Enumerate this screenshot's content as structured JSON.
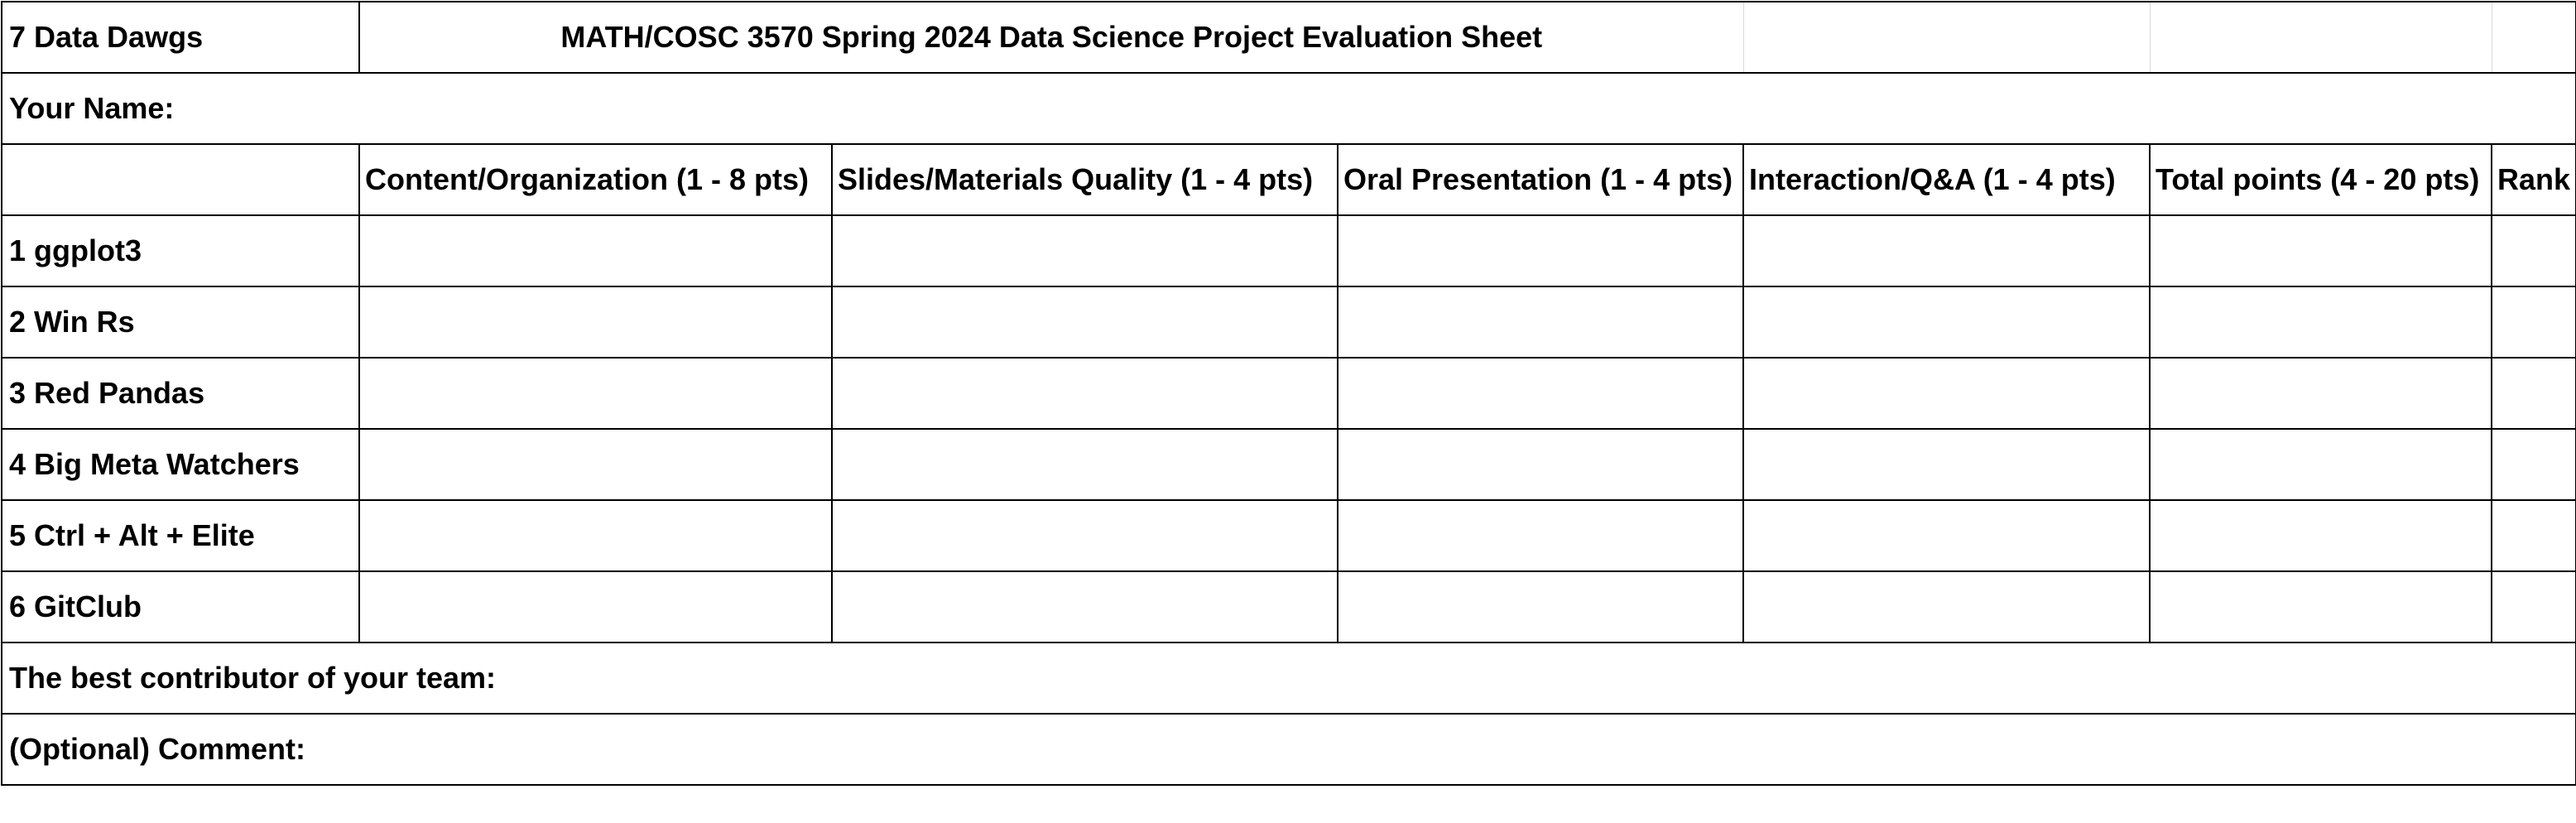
{
  "sheet": {
    "group_label": "7 Data Dawgs",
    "title": "MATH/COSC 3570 Spring 2024 Data Science Project Evaluation Sheet",
    "your_name_label": "Your Name:",
    "columns": [
      "Content/Organization (1 - 8 pts)",
      "Slides/Materials Quality (1 - 4 pts)",
      "Oral Presentation (1 - 4 pts)",
      "Interaction/Q&A (1 - 4 pts)",
      "Total points (4 - 20 pts)",
      "Rank"
    ],
    "teams": [
      "1 ggplot3",
      "2 Win Rs",
      "3 Red Pandas",
      "4 Big Meta Watchers",
      "5 Ctrl + Alt + Elite",
      "6 GitClub"
    ],
    "best_contributor_label": "The best contributor of your team:",
    "comment_label": "(Optional) Comment:"
  }
}
